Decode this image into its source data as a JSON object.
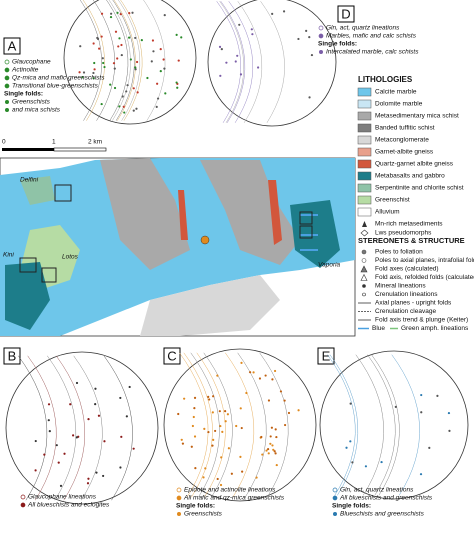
{
  "panels": {
    "a": "A",
    "b": "B",
    "c": "C",
    "d": "D",
    "e": "E"
  },
  "legend_a": {
    "items": [
      "Glaucophane",
      "Actinolite",
      "Qz-mica and mafic greenschists",
      "Transitional blue-greenschists"
    ],
    "single_folds": "Single folds:",
    "fold_items": [
      "Greenschists",
      "and mica schists"
    ]
  },
  "legend_d": {
    "items": [
      "Gln, act, quartz lineations",
      "Marbles, mafic and calc schists"
    ],
    "single_folds": "Single folds:",
    "fold_items": [
      "Intercalated marble, calc schists"
    ]
  },
  "legend_b": {
    "items": [
      "Glaucophane lineations",
      "All blueschists and eclogites"
    ]
  },
  "legend_c": {
    "items": [
      "Epidote and actinolite lineations",
      "All mafic and qz-mica greenschists"
    ],
    "single_folds": "Single folds:",
    "fold_items": [
      "Greenschists"
    ]
  },
  "legend_e": {
    "items": [
      "Gln, act, quartz lineations",
      "All blueschists and greenschists"
    ],
    "single_folds": "Single folds:",
    "fold_items": [
      "Blueschists and greenschists"
    ]
  },
  "scale": [
    "0",
    "1",
    "2 km"
  ],
  "places": [
    "Delfini",
    "Kini",
    "Lotos",
    "Vaporia"
  ],
  "lithologies": {
    "title": "LITHOLOGIES",
    "items": [
      {
        "label": "Calcite marble",
        "color": "#6ec6ea"
      },
      {
        "label": "Dolomite marble",
        "color": "#c9e6f4"
      },
      {
        "label": "Metasedimentary mica schist",
        "color": "#a9a9a9"
      },
      {
        "label": "Banded tuffitic schist",
        "color": "#7d7d7d"
      },
      {
        "label": "Metaconglomerate",
        "color": "#d8d8d8"
      },
      {
        "label": "Garnet-albite gneiss",
        "color": "#e8a08c"
      },
      {
        "label": "Quartz-garnet albite gneiss",
        "color": "#d2573c"
      },
      {
        "label": "Metabasalts and gabbro",
        "color": "#1d7d8a"
      },
      {
        "label": "Serpentinite and chlorite schist",
        "color": "#8fc3a7"
      },
      {
        "label": "Greenschist",
        "color": "#b6dca4"
      },
      {
        "label": "Alluvium",
        "color": "#ffffff"
      }
    ],
    "symbols": [
      "Mn-rich metasediments",
      "Lws pseudomorphs"
    ]
  },
  "structure": {
    "title": "STEREONETS & STRUCTURE",
    "items": [
      "Poles to foliation",
      "Poles to axial planes, intrafolial folds",
      "Fold axes (calculated)",
      "Fold axis, refolded folds (calculated)",
      "Mineral lineations",
      "Crenulation lineations",
      "Axial planes - upright folds",
      "Crenulation cleavage",
      "Fold axis trend & plunge (Keiter)"
    ],
    "last": [
      "Blue",
      "Green amph. lineations"
    ]
  }
}
